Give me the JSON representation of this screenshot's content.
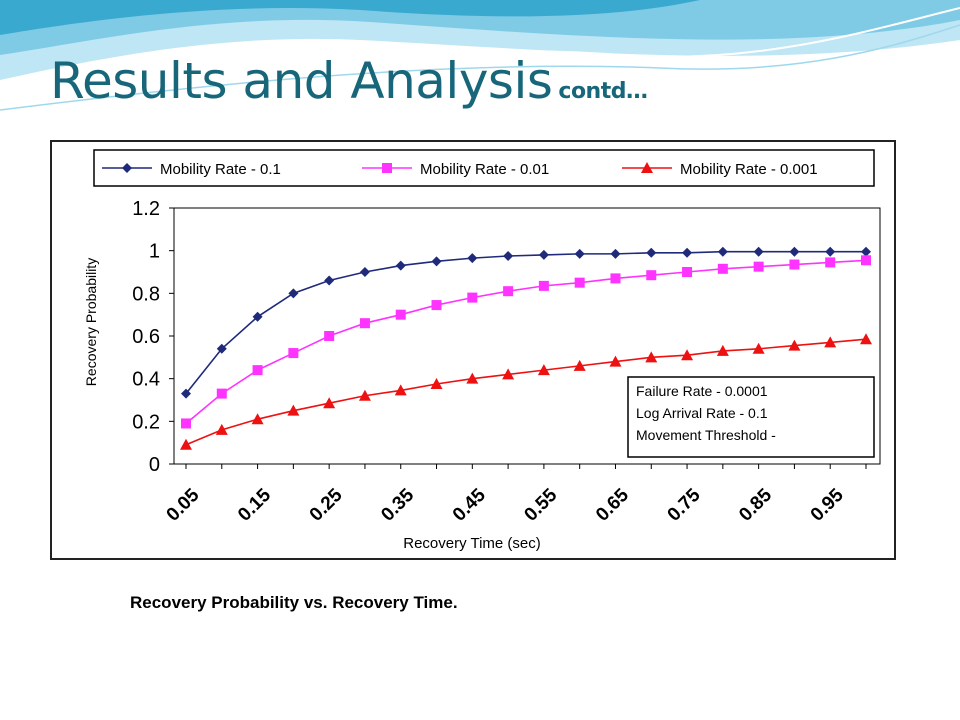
{
  "slide": {
    "title": "Results and Analysis",
    "title_suffix": "contd…",
    "caption": "Recovery Probability vs. Recovery Time.",
    "colors": {
      "title": "#17667a",
      "wave_light": "#bfe6f4",
      "wave_mid": "#7fcbe6",
      "wave_dark": "#3aa9cf"
    }
  },
  "chart_data": {
    "type": "line",
    "xlabel": "Recovery Time (sec)",
    "ylabel": "Recovery Probability",
    "ylim": [
      0,
      1.2
    ],
    "yticks": [
      "0",
      "0.2",
      "0.4",
      "0.6",
      "0.8",
      "1",
      "1.2"
    ],
    "x_tick_labels": [
      "0.05",
      "0.15",
      "0.25",
      "0.35",
      "0.45",
      "0.55",
      "0.65",
      "0.75",
      "0.85",
      "0.95"
    ],
    "x": [
      0.05,
      0.1,
      0.15,
      0.2,
      0.25,
      0.3,
      0.35,
      0.4,
      0.45,
      0.5,
      0.55,
      0.6,
      0.65,
      0.7,
      0.75,
      0.8,
      0.85,
      0.9,
      0.95,
      1.0
    ],
    "grid": false,
    "legend_position": "top",
    "series": [
      {
        "name": "Mobility Rate - 0.1",
        "color": "#1f2a7a",
        "marker": "diamond",
        "values": [
          0.33,
          0.54,
          0.69,
          0.8,
          0.86,
          0.9,
          0.93,
          0.95,
          0.965,
          0.975,
          0.98,
          0.985,
          0.985,
          0.99,
          0.99,
          0.995,
          0.995,
          0.995,
          0.995,
          0.995
        ]
      },
      {
        "name": "Mobility Rate - 0.01",
        "color": "#ff33ff",
        "marker": "square",
        "values": [
          0.19,
          0.33,
          0.44,
          0.52,
          0.6,
          0.66,
          0.7,
          0.745,
          0.78,
          0.81,
          0.835,
          0.85,
          0.87,
          0.885,
          0.9,
          0.915,
          0.925,
          0.935,
          0.945,
          0.955
        ]
      },
      {
        "name": "Mobility Rate - 0.001",
        "color": "#ee1111",
        "marker": "triangle",
        "values": [
          0.09,
          0.16,
          0.21,
          0.25,
          0.285,
          0.32,
          0.345,
          0.375,
          0.4,
          0.42,
          0.44,
          0.46,
          0.48,
          0.5,
          0.51,
          0.53,
          0.54,
          0.555,
          0.57,
          0.585
        ]
      }
    ],
    "annotation": [
      "Failure Rate - 0.0001",
      "Log Arrival Rate - 0.1",
      "Movement Threshold -"
    ]
  }
}
